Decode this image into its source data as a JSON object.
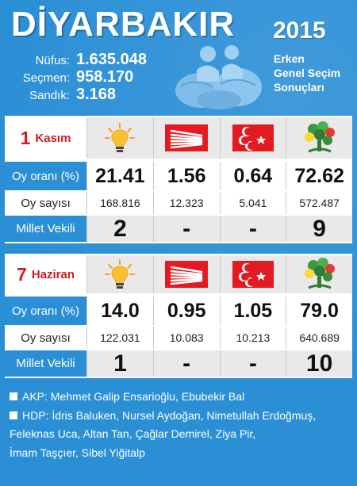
{
  "header": {
    "city": "DİYARBAKIR",
    "year": "2015",
    "subtitle_lines": [
      "Erken",
      "Genel Seçim",
      "Sonuçları"
    ],
    "stats": [
      {
        "label": "Nüfus:",
        "value": "1.635.048"
      },
      {
        "label": "Seçmen:",
        "value": "958.170"
      },
      {
        "label": "Sandık:",
        "value": "3.168"
      }
    ]
  },
  "parties": [
    {
      "icon": "akp-lightbulb-icon",
      "color": "#f6a21b"
    },
    {
      "icon": "chp-six-arrows-icon",
      "color": "#e21b22"
    },
    {
      "icon": "mhp-three-crescents-icon",
      "color": "#e21b22"
    },
    {
      "icon": "hdp-tree-icon",
      "color": "#3a9a3a"
    }
  ],
  "row_labels": {
    "vote_share": "Oy oranı (%)",
    "votes": "Oy sayısı",
    "mps": "Millet Vekili"
  },
  "nov": {
    "date_num": "1",
    "date_month": "Kasım",
    "vote_share": [
      "21.41",
      "1.56",
      "0.64",
      "72.62"
    ],
    "votes": [
      "168.816",
      "12.323",
      "5.041",
      "572.487"
    ],
    "mps": [
      "2",
      "-",
      "-",
      "9"
    ]
  },
  "jun": {
    "date_num": "7",
    "date_month": "Haziran",
    "vote_share": [
      "14.0",
      "0.95",
      "1.05",
      "79.0"
    ],
    "votes": [
      "122.031",
      "10.083",
      "10.213",
      "640.689"
    ],
    "mps": [
      "1",
      "-",
      "-",
      "10"
    ]
  },
  "notes": {
    "akp": "AKP: Mehmet Galip Ensarioğlu, Ebubekir Bal",
    "hdp_line1": "HDP: İdris Baluken, Nursel Aydoğan, Nimetullah Erdoğmuş,",
    "hdp_line2": "Feleknas Uca, Altan Tan, Çağlar Demirel, Ziya Pir,",
    "hdp_line3": "İmam Taşçıer, Sibel Yiğitalp"
  }
}
